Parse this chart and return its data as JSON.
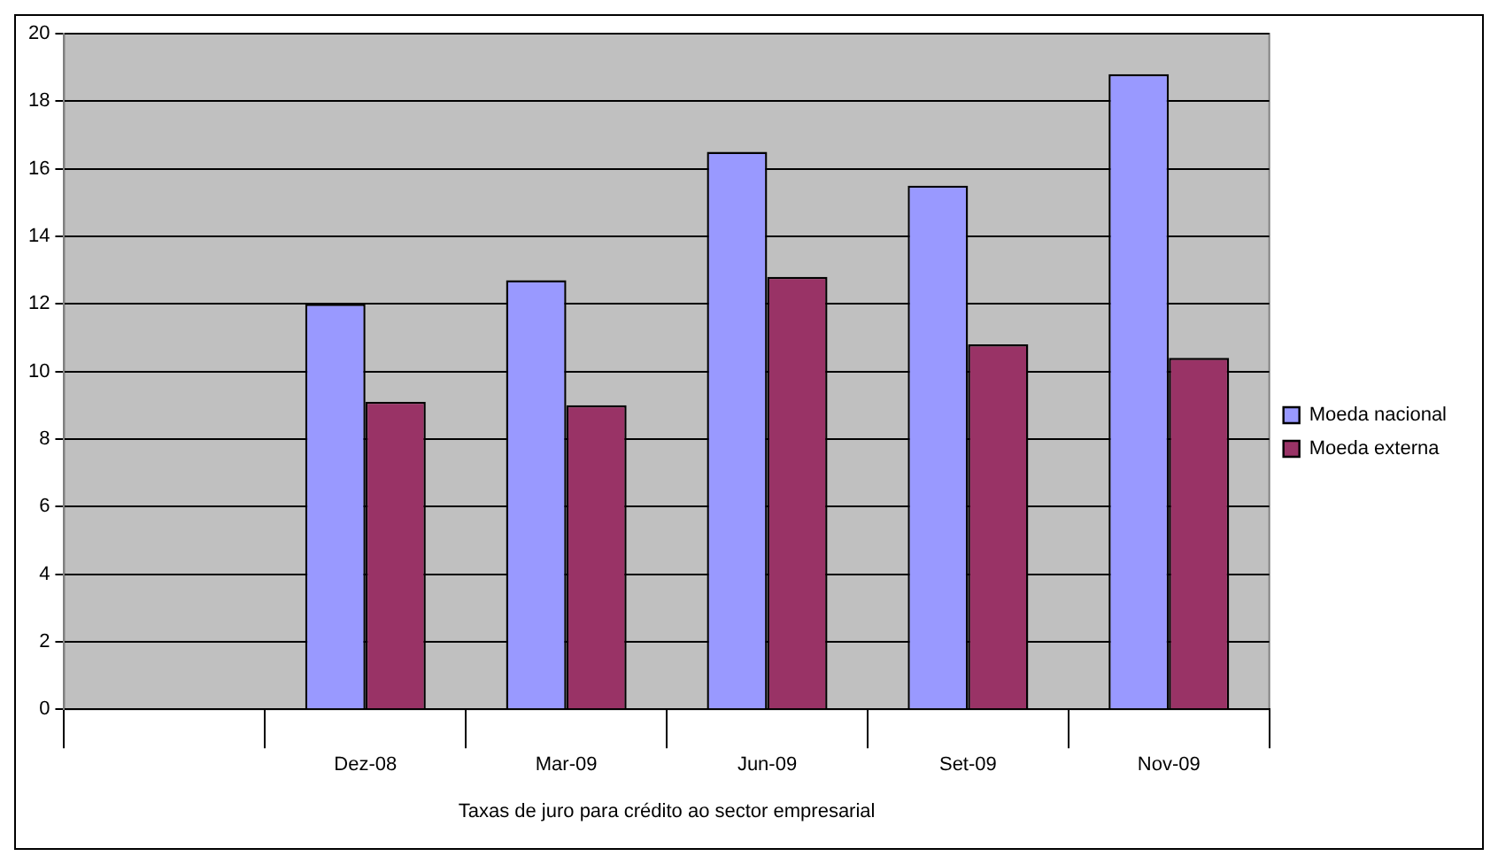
{
  "chart_data": {
    "type": "bar",
    "xlabel": "Taxas de juro para crédito ao sector empresarial",
    "categories": [
      null,
      "Dez-08",
      "Mar-09",
      "Jun-09",
      "Set-09",
      "Nov-09"
    ],
    "series": [
      {
        "name": "Moeda nacional",
        "color": "#9999ff",
        "values": [
          null,
          12.0,
          12.7,
          16.5,
          15.5,
          18.8
        ]
      },
      {
        "name": "Moeda externa",
        "color": "#993366",
        "values": [
          null,
          9.1,
          9.0,
          12.8,
          10.8,
          10.4
        ]
      }
    ],
    "ylim": [
      0,
      20
    ],
    "yticks": [
      0,
      2,
      4,
      6,
      8,
      10,
      12,
      14,
      16,
      18,
      20
    ],
    "grid": "y",
    "legend": "right"
  }
}
